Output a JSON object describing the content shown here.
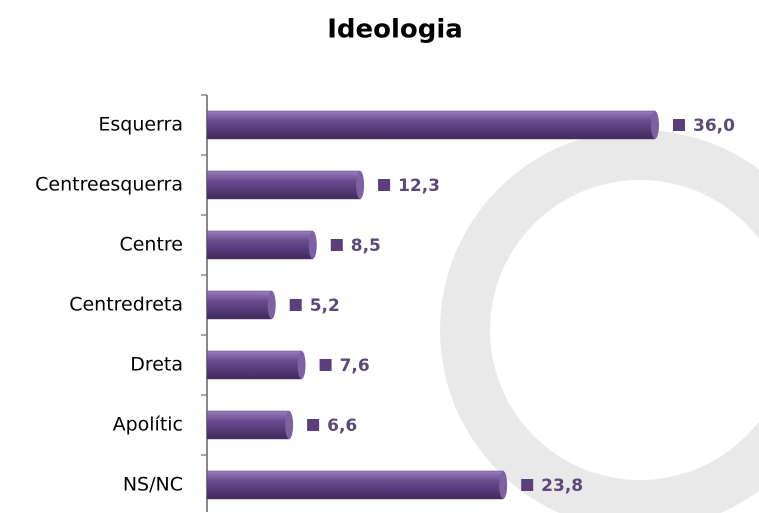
{
  "chart_data": {
    "type": "bar",
    "orientation": "horizontal",
    "title": "Ideologia",
    "categories": [
      "Esquerra",
      "Centreesquerra",
      "Centre",
      "Centredreta",
      "Dreta",
      "Apolític",
      "NS/NC"
    ],
    "values": [
      36.0,
      12.3,
      8.5,
      5.2,
      7.6,
      6.6,
      23.8
    ],
    "value_labels": [
      "36,0",
      "12,3",
      "8,5",
      "5,2",
      "7,6",
      "6,6",
      "23,8"
    ],
    "color": "#5b3f7c"
  }
}
